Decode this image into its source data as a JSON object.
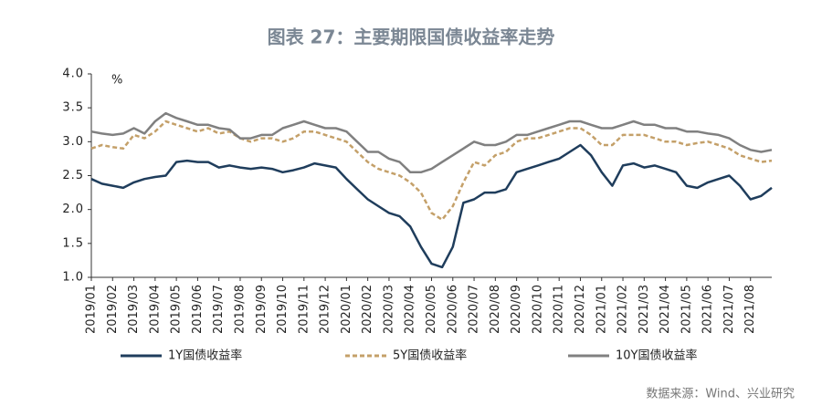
{
  "chart_data": {
    "type": "line",
    "title": "图表 27：主要期限国债收益率走势",
    "y_unit": "%",
    "source": "数据来源：Wind、兴业研究",
    "categories": [
      "2019/01",
      null,
      "2019/02",
      null,
      "2019/03",
      null,
      "2019/04",
      null,
      "2019/05",
      null,
      "2019/06",
      null,
      "2019/07",
      null,
      "2019/08",
      null,
      "2019/09",
      null,
      "2019/10",
      null,
      "2019/11",
      null,
      "2019/12",
      null,
      "2020/01",
      null,
      "2020/02",
      null,
      "2020/03",
      null,
      "2020/04",
      null,
      "2020/05",
      null,
      "2020/06",
      null,
      "2020/07",
      null,
      "2020/08",
      null,
      "2020/09",
      null,
      "2020/10",
      null,
      "2020/11",
      null,
      "2020/12",
      null,
      "2021/01",
      null,
      "2021/02",
      null,
      "2021/03",
      null,
      "2021/04",
      null,
      "2021/05",
      null,
      "2021/06",
      null,
      "2021/07",
      null,
      "2021/08",
      null,
      null
    ],
    "ylim": [
      1.0,
      4.0
    ],
    "yticks": [
      {
        "value": 1.0,
        "label": "1.0"
      },
      {
        "value": 1.5,
        "label": "1.5"
      },
      {
        "value": 2.0,
        "label": "2.0"
      },
      {
        "value": 2.5,
        "label": "2.5"
      },
      {
        "value": 3.0,
        "label": "3.0"
      },
      {
        "value": 3.5,
        "label": "3.5"
      },
      {
        "value": 4.0,
        "label": "4.0"
      }
    ],
    "series": [
      {
        "name": "1Y国债收益率",
        "color": "#1f3d5c",
        "dash": "solid",
        "values": [
          2.45,
          2.38,
          2.35,
          2.32,
          2.4,
          2.45,
          2.48,
          2.5,
          2.7,
          2.72,
          2.7,
          2.7,
          2.62,
          2.65,
          2.62,
          2.6,
          2.62,
          2.6,
          2.55,
          2.58,
          2.62,
          2.68,
          2.65,
          2.62,
          2.45,
          2.3,
          2.15,
          2.05,
          1.95,
          1.9,
          1.75,
          1.45,
          1.2,
          1.15,
          1.45,
          2.1,
          2.15,
          2.25,
          2.25,
          2.3,
          2.55,
          2.6,
          2.65,
          2.7,
          2.75,
          2.85,
          2.95,
          2.8,
          2.55,
          2.35,
          2.65,
          2.68,
          2.62,
          2.65,
          2.6,
          2.55,
          2.35,
          2.32,
          2.4,
          2.45,
          2.5,
          2.35,
          2.15,
          2.2,
          2.32
        ]
      },
      {
        "name": "5Y国债收益率",
        "color": "#c4a069",
        "dash": "dashed",
        "values": [
          2.9,
          2.95,
          2.92,
          2.9,
          3.1,
          3.05,
          3.15,
          3.3,
          3.25,
          3.2,
          3.15,
          3.2,
          3.12,
          3.15,
          3.05,
          3.0,
          3.05,
          3.05,
          3.0,
          3.05,
          3.15,
          3.15,
          3.1,
          3.05,
          3.0,
          2.85,
          2.7,
          2.6,
          2.55,
          2.5,
          2.4,
          2.25,
          1.95,
          1.85,
          2.05,
          2.4,
          2.7,
          2.65,
          2.8,
          2.85,
          3.0,
          3.05,
          3.05,
          3.1,
          3.15,
          3.2,
          3.2,
          3.1,
          2.95,
          2.95,
          3.1,
          3.1,
          3.1,
          3.05,
          3.0,
          3.0,
          2.95,
          2.98,
          3.0,
          2.95,
          2.9,
          2.8,
          2.75,
          2.7,
          2.72
        ]
      },
      {
        "name": "10Y国债收益率",
        "color": "#808080",
        "dash": "solid",
        "values": [
          3.15,
          3.12,
          3.1,
          3.12,
          3.2,
          3.12,
          3.3,
          3.42,
          3.35,
          3.3,
          3.25,
          3.25,
          3.2,
          3.18,
          3.05,
          3.05,
          3.1,
          3.1,
          3.2,
          3.25,
          3.3,
          3.25,
          3.2,
          3.2,
          3.15,
          3.0,
          2.85,
          2.85,
          2.75,
          2.7,
          2.55,
          2.55,
          2.6,
          2.7,
          2.8,
          2.9,
          3.0,
          2.95,
          2.95,
          3.0,
          3.1,
          3.1,
          3.15,
          3.2,
          3.25,
          3.3,
          3.3,
          3.25,
          3.2,
          3.2,
          3.25,
          3.3,
          3.25,
          3.25,
          3.2,
          3.2,
          3.15,
          3.15,
          3.12,
          3.1,
          3.05,
          2.95,
          2.88,
          2.85,
          2.88
        ]
      }
    ],
    "legend": "bottom"
  }
}
